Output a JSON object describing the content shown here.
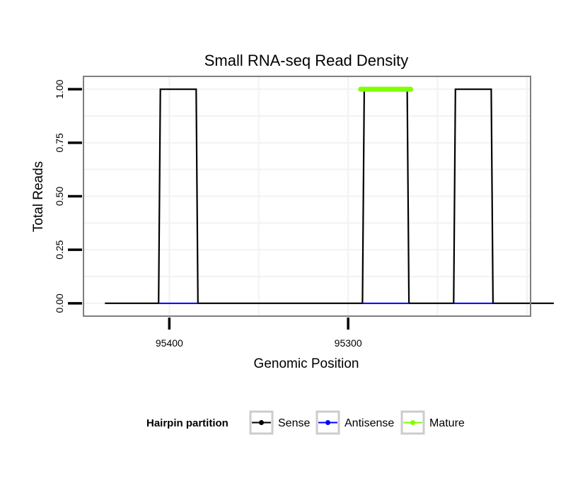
{
  "chart_data": {
    "type": "line",
    "title": "Small RNA-seq Read Density",
    "xlabel": "Genomic Position",
    "ylabel": "Total Reads",
    "x_reversed": true,
    "xlim": [
      95448,
      95198
    ],
    "ylim": [
      -0.06,
      1.06
    ],
    "x_ticks": [
      95400,
      95300
    ],
    "x_tick_labels": [
      "95400",
      "95300"
    ],
    "y_ticks": [
      0,
      0.25,
      0.5,
      0.75,
      1
    ],
    "y_tick_labels": [
      "0.00",
      "0.25",
      "0.50",
      "0.75",
      "1.00"
    ],
    "grid": true,
    "legend": {
      "title": "Hairpin partition",
      "position": "bottom",
      "entries": [
        {
          "label": "Sense",
          "color": "#000000"
        },
        {
          "label": "Antisense",
          "color": "#0000ff"
        },
        {
          "label": "Mature",
          "color": "#7fff00"
        }
      ]
    },
    "series": [
      {
        "name": "Sense",
        "color": "#000000",
        "x": [
          95436,
          95406,
          95405,
          95385,
          95384,
          95292,
          95291,
          95267,
          95266,
          95241,
          95240,
          95220,
          95219,
          95185
        ],
        "y": [
          0,
          0,
          1,
          1,
          0,
          0,
          1,
          1,
          0,
          0,
          1,
          1,
          0,
          0
        ]
      },
      {
        "name": "Antisense",
        "color": "#0000ff",
        "segments": [
          [
            95406,
            95384
          ],
          [
            95292,
            95266
          ],
          [
            95241,
            95219
          ]
        ],
        "value": 0
      },
      {
        "name": "Mature",
        "color": "#7fff00",
        "segments": [
          [
            95293,
            95265
          ]
        ],
        "value": 1
      }
    ]
  }
}
